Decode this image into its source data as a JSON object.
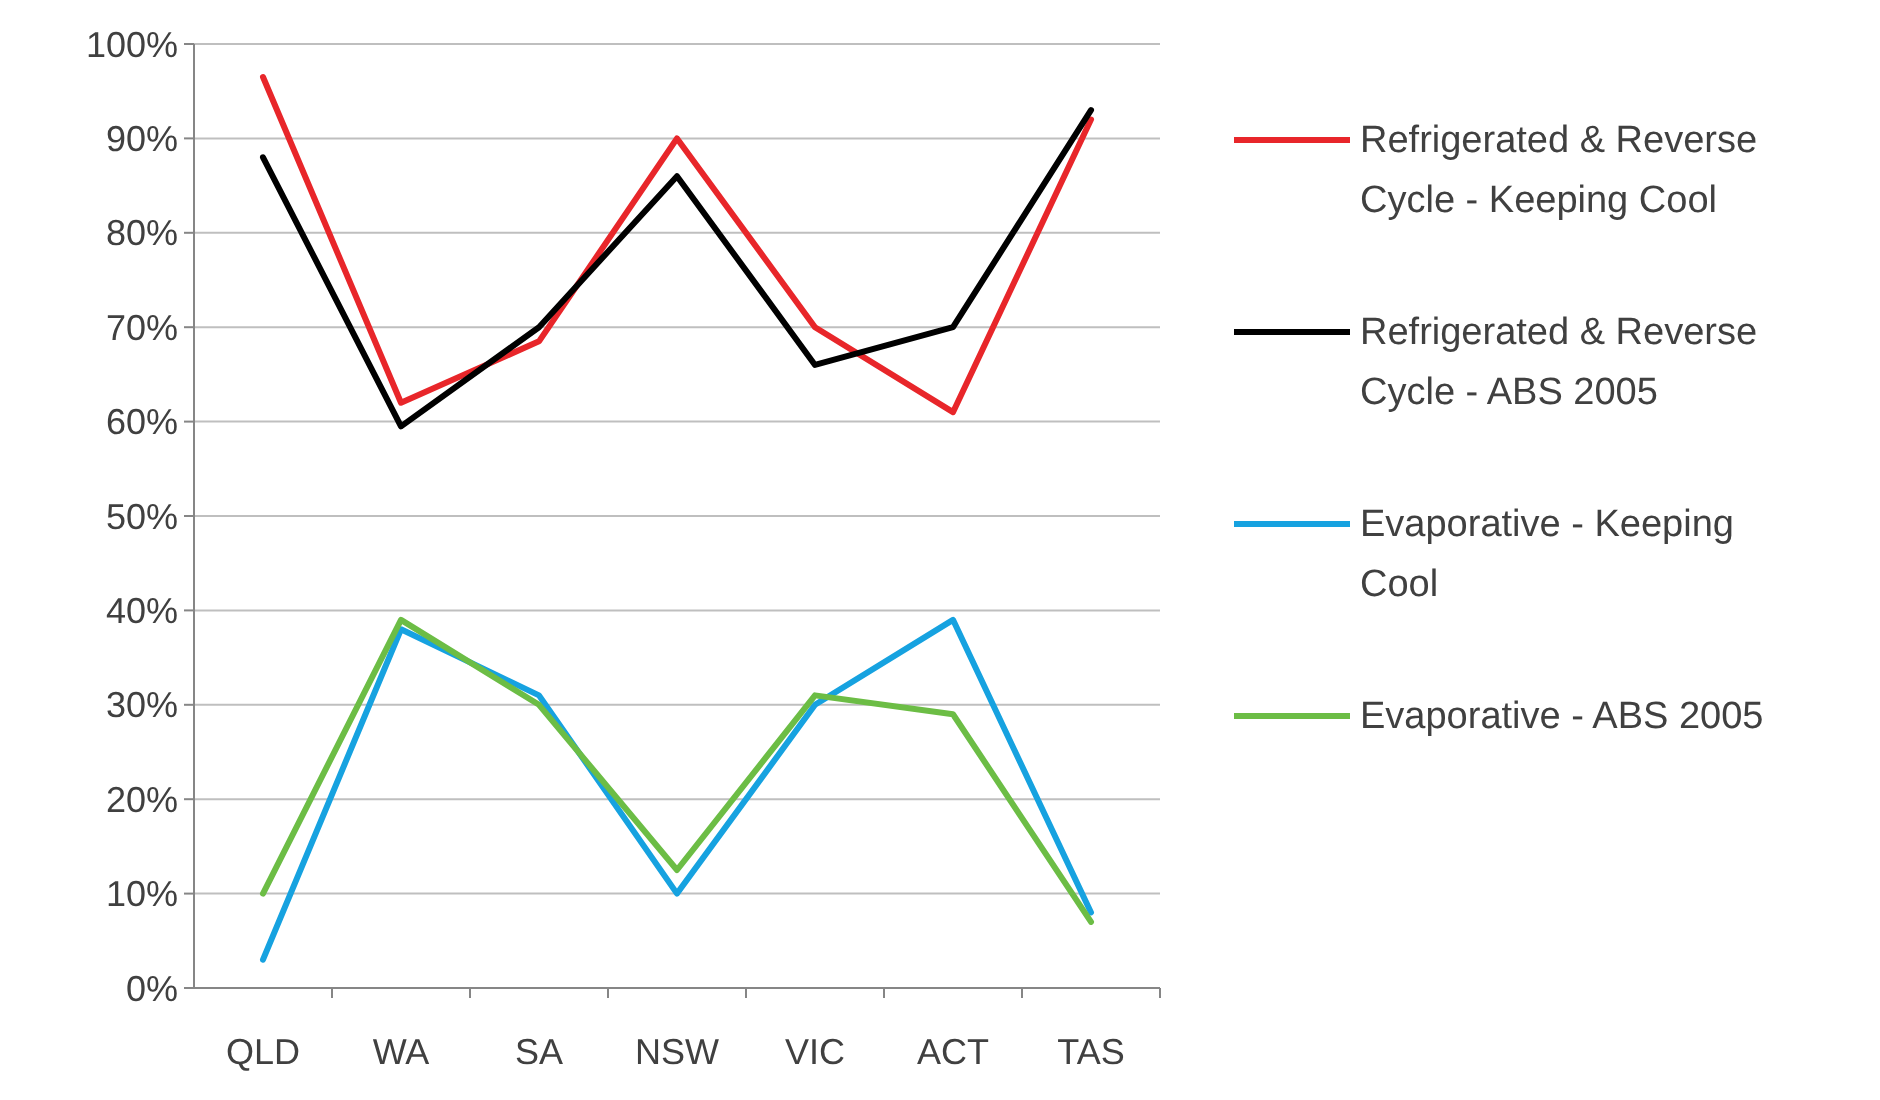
{
  "chart_data": {
    "type": "line",
    "categories": [
      "QLD",
      "WA",
      "SA",
      "NSW",
      "VIC",
      "ACT",
      "TAS"
    ],
    "series": [
      {
        "name": "Refrigerated & Reverse Cycle - Keeping Cool",
        "color": "#e8262a",
        "values": [
          96.5,
          62,
          68.5,
          90,
          70,
          61,
          92
        ]
      },
      {
        "name": "Refrigerated & Reverse Cycle - ABS 2005",
        "color": "#000000",
        "values": [
          88,
          59.5,
          70,
          86,
          66,
          70,
          93
        ]
      },
      {
        "name": "Evaporative - Keeping Cool",
        "color": "#16a2e0",
        "values": [
          3,
          38,
          31,
          10,
          30,
          39,
          8
        ]
      },
      {
        "name": "Evaporative - ABS 2005",
        "color": "#6cbd45",
        "values": [
          10,
          39,
          30,
          12.5,
          31,
          29,
          7
        ]
      }
    ],
    "ylim": [
      0,
      100
    ],
    "yticks": [
      {
        "value": 0,
        "label": "0%"
      },
      {
        "value": 10,
        "label": "10%"
      },
      {
        "value": 20,
        "label": "20%"
      },
      {
        "value": 30,
        "label": "30%"
      },
      {
        "value": 40,
        "label": "40%"
      },
      {
        "value": 50,
        "label": "50%"
      },
      {
        "value": 60,
        "label": "60%"
      },
      {
        "value": 70,
        "label": "70%"
      },
      {
        "value": 80,
        "label": "80%"
      },
      {
        "value": 90,
        "label": "90%"
      },
      {
        "value": 100,
        "label": "100%"
      }
    ],
    "grid": "y",
    "legend": "right",
    "marker": "none",
    "line_style": "solid"
  }
}
